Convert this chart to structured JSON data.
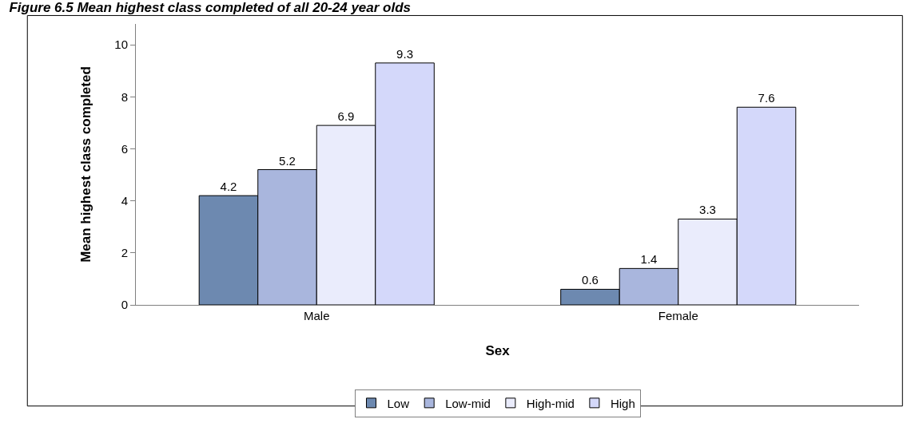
{
  "chart_data": {
    "type": "bar",
    "title": "Figure 6.5 Mean highest class completed of all 20-24 year olds",
    "xlabel": "Sex",
    "ylabel": "Mean highest class completed",
    "categories": [
      "Male",
      "Female"
    ],
    "series": [
      {
        "name": "Low",
        "color": "#6d89b0",
        "values": [
          4.2,
          0.6
        ]
      },
      {
        "name": "Low-mid",
        "color": "#a9b6dd",
        "values": [
          5.2,
          1.4
        ]
      },
      {
        "name": "High-mid",
        "color": "#eaecfc",
        "values": [
          6.9,
          3.3
        ]
      },
      {
        "name": "High",
        "color": "#d4d8fa",
        "values": [
          9.3,
          7.6
        ]
      }
    ],
    "ylim": [
      0,
      10.8
    ],
    "yticks": [
      0,
      2,
      4,
      6,
      8,
      10
    ],
    "grid": false,
    "legend": "bottom",
    "data_labels": true
  }
}
